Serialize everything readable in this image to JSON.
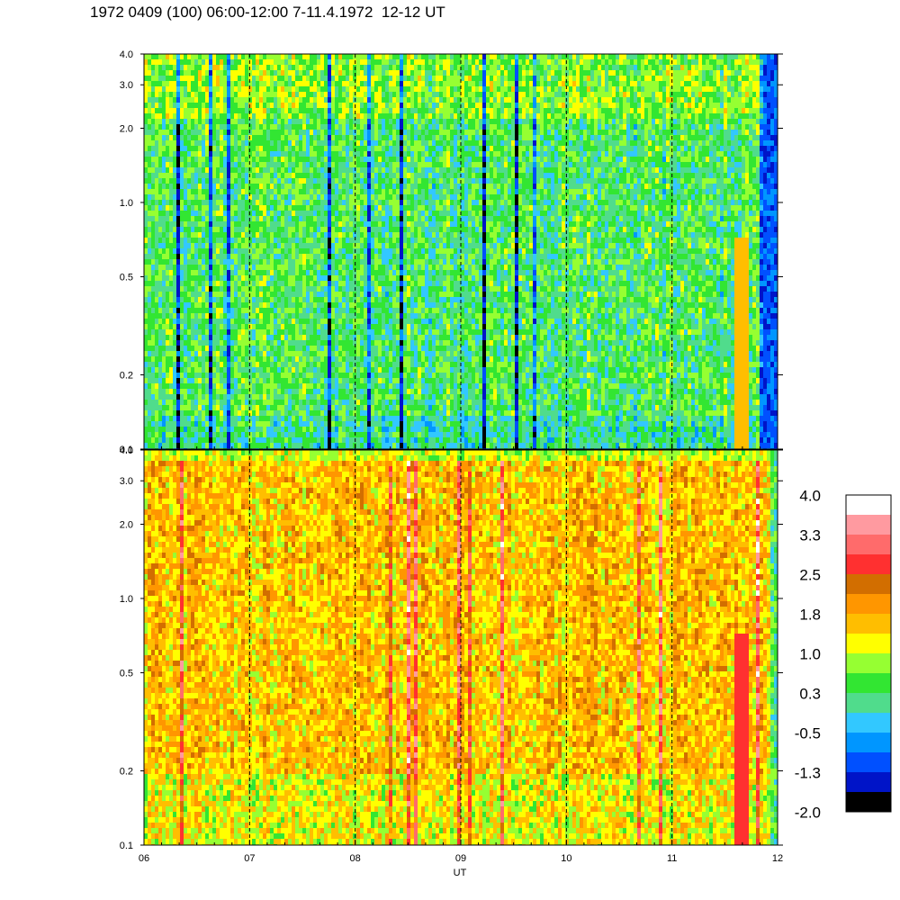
{
  "title": "1972 0409 (100) 06:00-12:00 7-11.4.1972  12-12 UT",
  "chart_data": [
    {
      "type": "heatmap",
      "panel": "upper",
      "x_ticks": [
        "06",
        "07",
        "08",
        "09",
        "10",
        "11",
        "12"
      ],
      "y_ticks": [
        {
          "value": 0.1,
          "label": "0.1"
        },
        {
          "value": 0.2,
          "label": "0.2"
        },
        {
          "value": 0.5,
          "label": "0.5"
        },
        {
          "value": 1.0,
          "label": "1.0"
        },
        {
          "value": 2.0,
          "label": "2.0"
        },
        {
          "value": 3.0,
          "label": "3.0"
        },
        {
          "value": 4.0,
          "label": "4.0"
        }
      ],
      "ylim": [
        0.1,
        4.0
      ],
      "y_scale": "log",
      "xlim": [
        6,
        12
      ],
      "dashed_hour_lines": [
        7,
        8,
        9,
        10,
        11
      ],
      "dominant_level": 0.3
    },
    {
      "type": "heatmap",
      "panel": "lower",
      "x_ticks": [
        "06",
        "07",
        "08",
        "09",
        "10",
        "11",
        "12"
      ],
      "y_ticks": [
        {
          "value": 0.1,
          "label": "0.1"
        },
        {
          "value": 0.2,
          "label": "0.2"
        },
        {
          "value": 0.5,
          "label": "0.5"
        },
        {
          "value": 1.0,
          "label": "1.0"
        },
        {
          "value": 2.0,
          "label": "2.0"
        },
        {
          "value": 3.0,
          "label": "3.0"
        },
        {
          "value": 4.0,
          "label": "4.0"
        }
      ],
      "ylim": [
        0.1,
        4.0
      ],
      "y_scale": "log",
      "xlim": [
        6,
        12
      ],
      "xlabel": "UT",
      "dashed_hour_lines": [
        7,
        8,
        9,
        10,
        11
      ],
      "dominant_level": 1.6
    }
  ],
  "colorbar": {
    "labels": [
      "4.0",
      "3.3",
      "2.5",
      "1.8",
      "1.0",
      "0.3",
      "-0.5",
      "-1.3",
      "-2.0"
    ],
    "colors": [
      "#ffffff",
      "#ff9aa0",
      "#ff6b6b",
      "#ff3030",
      "#d26e00",
      "#ff9600",
      "#ffbe00",
      "#ffff00",
      "#96ff32",
      "#32e632",
      "#50dc8c",
      "#32c8ff",
      "#0096ff",
      "#0050ff",
      "#0014c8",
      "#000000"
    ]
  }
}
